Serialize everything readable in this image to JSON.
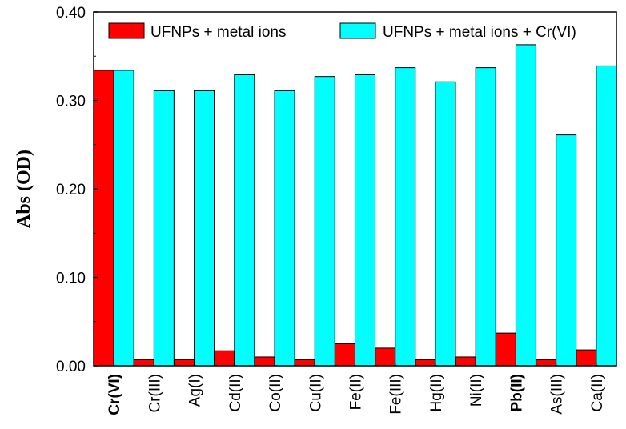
{
  "chart_data": {
    "type": "bar",
    "title": "",
    "xlabel": "",
    "ylabel": "Abs (OD)",
    "ylim": [
      0,
      0.4
    ],
    "yticks": [
      "0.00",
      "0.10",
      "0.20",
      "0.30",
      "0.40"
    ],
    "grid": false,
    "legend_position": "top",
    "categories": [
      "Cr(VI)",
      "Cr(III)",
      "Ag(I)",
      "Cd(II)",
      "Co(II)",
      "Cu(II)",
      "Fe(II)",
      "Fe(III)",
      "Hg(II)",
      "Ni(II)",
      "Pb(II)",
      "As(III)",
      "Ca(II)"
    ],
    "bold_categories": [
      "Cr(VI)",
      "Pb(II)"
    ],
    "series": [
      {
        "name": "UFNPs + metal ions",
        "color": "#ff0000",
        "values": [
          0.334,
          0.007,
          0.007,
          0.017,
          0.01,
          0.007,
          0.025,
          0.02,
          0.007,
          0.01,
          0.037,
          0.007,
          0.018
        ]
      },
      {
        "name": "UFNPs + metal ions + Cr(VI)",
        "color": "#00ffff",
        "values": [
          0.334,
          0.311,
          0.311,
          0.329,
          0.311,
          0.327,
          0.329,
          0.337,
          0.321,
          0.337,
          0.363,
          0.261,
          0.339
        ]
      }
    ]
  }
}
